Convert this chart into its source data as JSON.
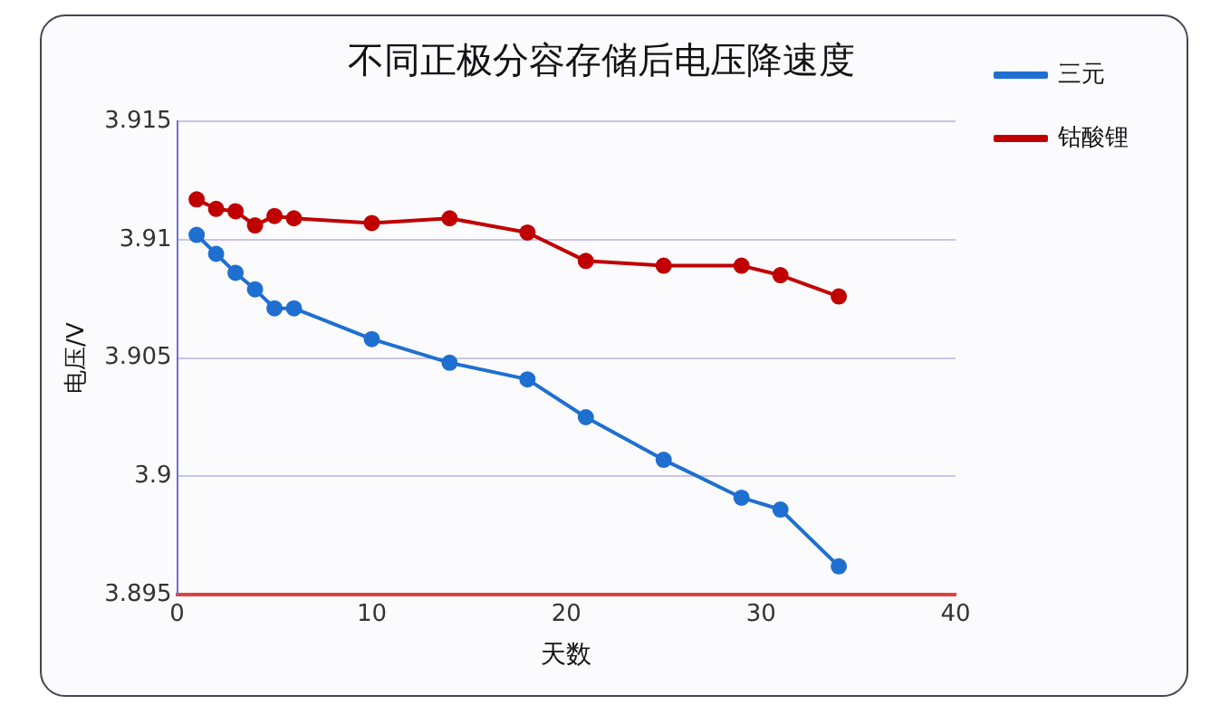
{
  "chart_data": {
    "type": "line",
    "title": "不同正极分容存储后电压降速度",
    "xlabel": "天数",
    "ylabel": "电压/V",
    "x": [
      1,
      2,
      3,
      4,
      5,
      6,
      10,
      14,
      18,
      21,
      25,
      29,
      31,
      34
    ],
    "series": [
      {
        "name": "三元",
        "color": "#1f6fd0",
        "values": [
          3.9102,
          3.9094,
          3.9086,
          3.9079,
          3.9071,
          3.9071,
          3.9058,
          3.9048,
          3.9041,
          3.9025,
          3.9007,
          3.8991,
          3.8986,
          3.8962
        ]
      },
      {
        "name": "钴酸锂",
        "color": "#c00000",
        "values": [
          3.9117,
          3.9113,
          3.9112,
          3.9106,
          3.911,
          3.9109,
          3.9107,
          3.9109,
          3.9103,
          3.9091,
          3.9089,
          3.9089,
          3.9085,
          3.9076
        ]
      }
    ],
    "xlim": [
      0,
      40
    ],
    "xticks": [
      0,
      10,
      20,
      30,
      40
    ],
    "ylim": [
      3.895,
      3.915
    ],
    "yticks": [
      3.895,
      3.9,
      3.905,
      3.91,
      3.915
    ],
    "grid": "y",
    "legend": "right",
    "marker": "circle",
    "line_style": "solid"
  }
}
